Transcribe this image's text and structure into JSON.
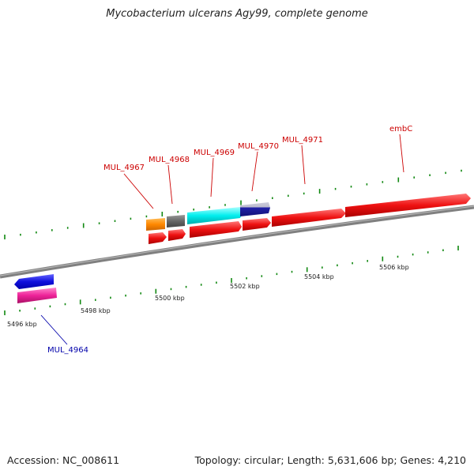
{
  "title": "Mycobacterium ulcerans Agy99, complete genome",
  "footer": {
    "accession": "Accession: NC_008611",
    "summary": "Topology: circular; Length: 5,631,606 bp; Genes: 4,210"
  },
  "scale_labels": [
    "5496 kbp",
    "5498 kbp",
    "5500 kbp",
    "5502 kbp",
    "5504 kbp",
    "5506 kbp"
  ],
  "gene_labels": {
    "top": [
      "MUL_4967",
      "MUL_4968",
      "MUL_4969",
      "MUL_4970",
      "MUL_4971",
      "embC"
    ],
    "bottom": [
      "MUL_4964"
    ]
  },
  "colors": {
    "red_gene": "#ee1111",
    "orange_gene": "#ff8800",
    "gray_gene": "#666666",
    "cyan_gene": "#00eeee",
    "navy_gene": "#2222aa",
    "blue_gene": "#1010dd",
    "pink_gene": "#ee2299",
    "top_label": "#cc0000",
    "bottom_label": "#0000aa",
    "tick_green": "#118811",
    "backbone": "#808080"
  }
}
